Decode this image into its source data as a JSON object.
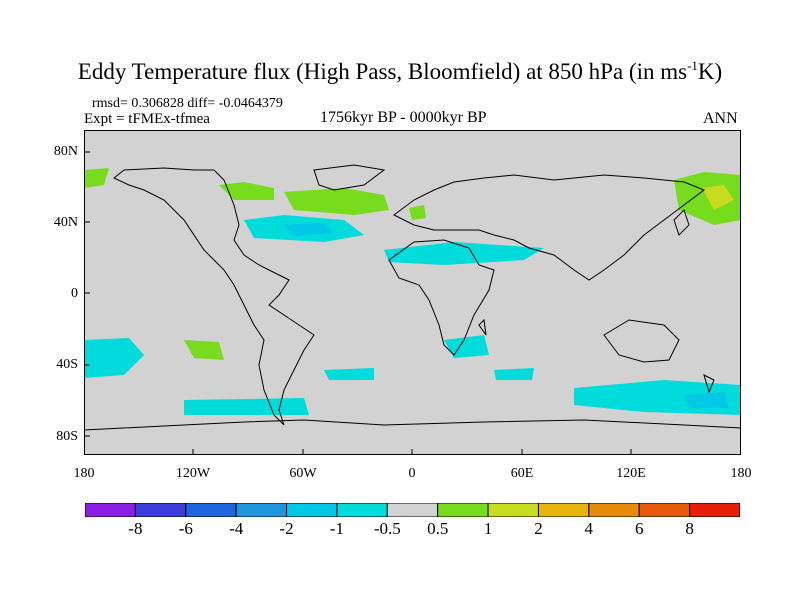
{
  "title": {
    "main": "Eddy Temperature flux (High Pass, Bloomfield) at 850 hPa (in ms",
    "sup": "-1",
    "tail": "K)"
  },
  "stats": "rmsd= 0.306828 diff= -0.0464379",
  "expt": "Expt = tFMEx-tfmea",
  "period": "1756kyr BP - 0000kyr BP",
  "season": "ANN",
  "axes": {
    "y_ticks": [
      "80N",
      "40N",
      "0",
      "40S",
      "80S"
    ],
    "x_ticks": [
      "180",
      "120W",
      "60W",
      "0",
      "60E",
      "120E",
      "180"
    ]
  },
  "colorbar": {
    "labels": [
      "-8",
      "-6",
      "-4",
      "-2",
      "-1",
      "-0.5",
      "0.5",
      "1",
      "2",
      "4",
      "6",
      "8"
    ],
    "colors": [
      "#8a1ee6",
      "#3c3cdc",
      "#1e64dc",
      "#1e96dc",
      "#00c8e6",
      "#00dcdc",
      "#d2d2d2",
      "#78dc1e",
      "#c8dc1e",
      "#e6b40a",
      "#e68c0a",
      "#e65a0a",
      "#e61e0a"
    ]
  },
  "colors": {
    "land_sea_neutral": "#d2d2d2",
    "coastline": "#000000"
  }
}
